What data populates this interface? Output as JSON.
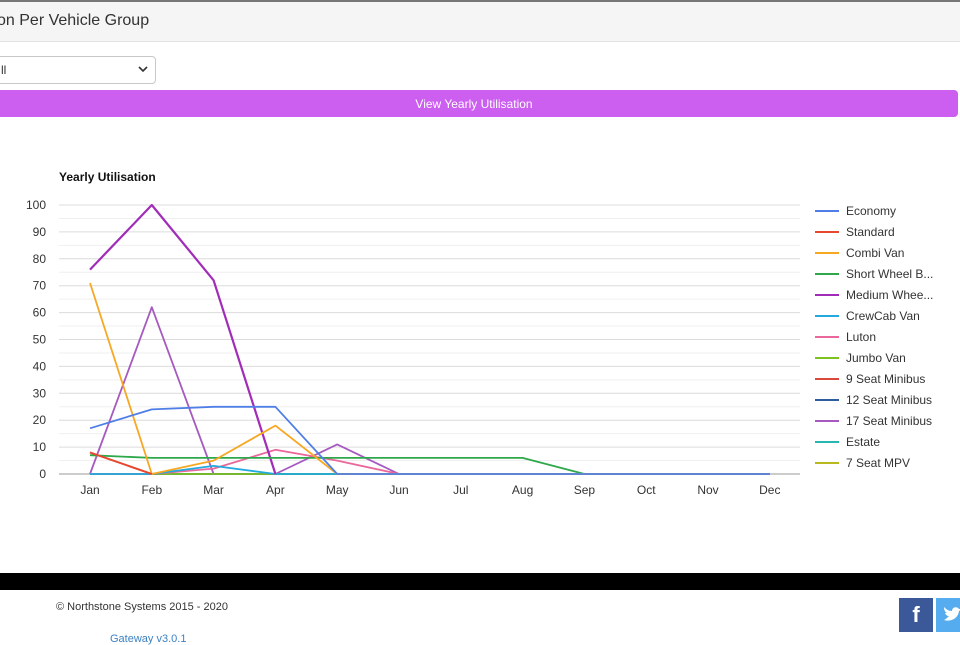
{
  "header": {
    "title": "on Per Vehicle Group"
  },
  "filter": {
    "selected": "ll"
  },
  "actions": {
    "view_yearly_label": "View Yearly Utilisation"
  },
  "colors": {
    "accent": "#cc5ef0",
    "header_bg": "#f5f5f5",
    "facebook": "#3b5998",
    "twitter": "#55acee"
  },
  "chart_data": {
    "type": "line",
    "title": "Yearly Utilisation",
    "categories": [
      "Jan",
      "Feb",
      "Mar",
      "Apr",
      "May",
      "Jun",
      "Jul",
      "Aug",
      "Sep",
      "Oct",
      "Nov",
      "Dec"
    ],
    "ylim": [
      0,
      100
    ],
    "yticks": [
      0,
      10,
      20,
      30,
      40,
      50,
      60,
      70,
      80,
      90,
      100
    ],
    "grid": true,
    "legend_position": "right",
    "series": [
      {
        "name": "Economy",
        "color": "#4f7fe6",
        "values": [
          17,
          24,
          25,
          25,
          0,
          0,
          0,
          0,
          0,
          0,
          0,
          0
        ]
      },
      {
        "name": "Standard",
        "color": "#e8472f",
        "values": [
          8,
          0,
          null,
          null,
          null,
          null,
          null,
          null,
          null,
          null,
          null,
          null
        ]
      },
      {
        "name": "Combi Van",
        "color": "#f7a823",
        "values": [
          71,
          0,
          5,
          18,
          0,
          0,
          0,
          0,
          0,
          0,
          0,
          0
        ]
      },
      {
        "name": "Short Wheel B...",
        "color": "#2ea84a",
        "values": [
          7,
          6,
          6,
          6,
          6,
          6,
          6,
          6,
          0,
          0,
          0,
          0
        ]
      },
      {
        "name": "Medium Whee...",
        "color": "#a12cb8",
        "values": [
          76,
          100,
          72,
          0,
          null,
          null,
          null,
          null,
          null,
          null,
          null,
          null
        ]
      },
      {
        "name": "CrewCab Van",
        "color": "#22a9dd",
        "values": [
          0,
          0,
          3,
          0,
          0,
          0,
          0,
          0,
          0,
          0,
          0,
          0
        ]
      },
      {
        "name": "Luton",
        "color": "#e9679a",
        "values": [
          0,
          0,
          2,
          9,
          5,
          0,
          0,
          0,
          0,
          0,
          0,
          0
        ]
      },
      {
        "name": "Jumbo Van",
        "color": "#7ec21f",
        "values": [
          0,
          0,
          0,
          0,
          0,
          0,
          0,
          0,
          0,
          0,
          0,
          0
        ]
      },
      {
        "name": "9 Seat Minibus",
        "color": "#d9483a",
        "values": [
          8,
          0,
          null,
          null,
          null,
          null,
          null,
          null,
          null,
          null,
          null,
          null
        ]
      },
      {
        "name": "12 Seat Minibus",
        "color": "#2f5e9e",
        "values": [
          0,
          0,
          0,
          0,
          0,
          0,
          0,
          0,
          0,
          0,
          0,
          0
        ]
      },
      {
        "name": "17 Seat Minibus",
        "color": "#a65abf",
        "values": [
          0,
          62,
          0,
          0,
          11,
          0,
          null,
          null,
          null,
          null,
          null,
          null
        ]
      },
      {
        "name": "Estate",
        "color": "#28b6b0",
        "values": [
          0,
          0,
          0,
          0,
          0,
          0,
          0,
          0,
          0,
          0,
          0,
          0
        ]
      },
      {
        "name": "7 Seat MPV",
        "color": "#b8b81f",
        "values": [
          0,
          0,
          0,
          0,
          0,
          0,
          0,
          0,
          0,
          0,
          0,
          0
        ]
      }
    ]
  },
  "footer": {
    "copyright": "© Northstone Systems 2015 - 2020",
    "version": "Gateway v3.0.1"
  }
}
